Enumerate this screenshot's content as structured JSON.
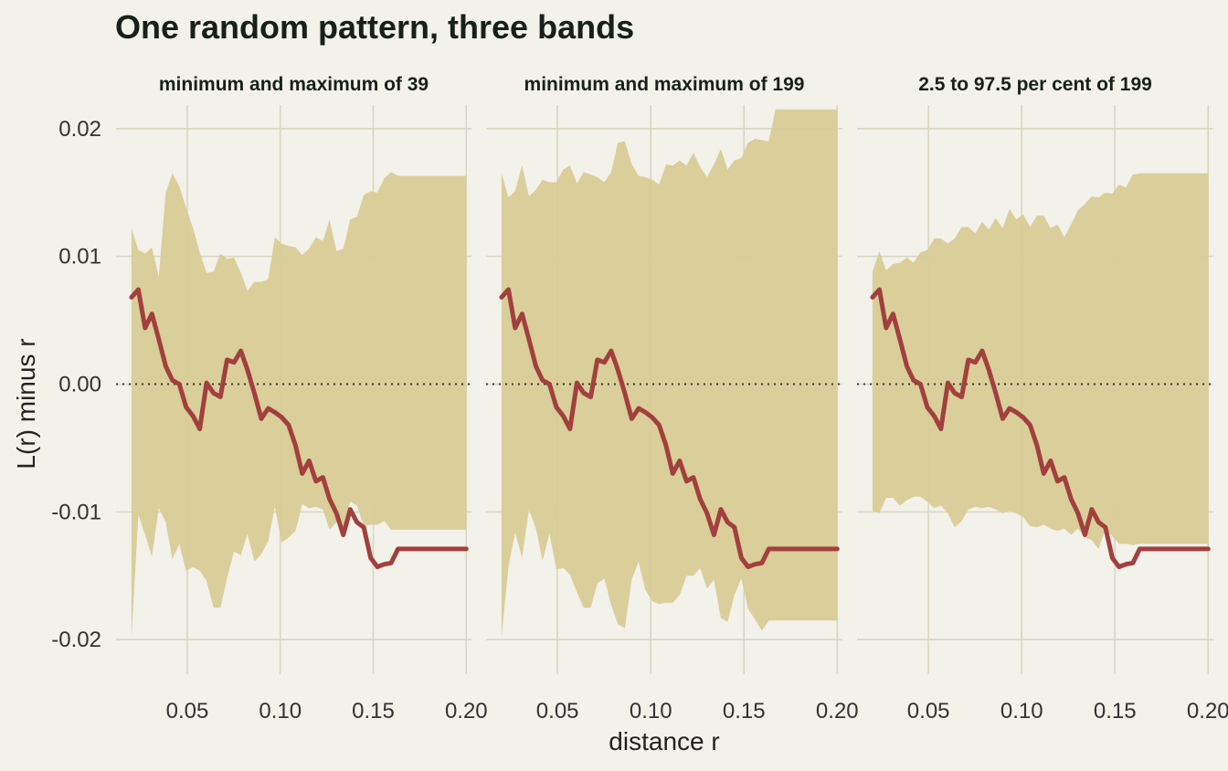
{
  "chart_data": {
    "type": "area",
    "title": "One random pattern, three bands",
    "xlabel": "distance r",
    "ylabel": "L(r) minus r",
    "xlim": [
      0.02,
      0.2
    ],
    "ylim": [
      -0.0215,
      0.0215
    ],
    "x_ticks": [
      "0.05",
      "0.10",
      "0.15",
      "0.20"
    ],
    "x_tick_values": [
      0.05,
      0.1,
      0.15,
      0.2
    ],
    "y_ticks": [
      "-0.02",
      "-0.01",
      "0.00",
      "0.01",
      "0.02"
    ],
    "y_tick_values": [
      -0.02,
      -0.01,
      0.0,
      0.01,
      0.02
    ],
    "grid": true,
    "reference_line": 0,
    "colors": {
      "band": "#d8cb96",
      "observed": "#a1403e",
      "background": "#f2f1ea",
      "grid": "#d9d6c1"
    },
    "x": [
      0.02,
      0.0237,
      0.0273,
      0.031,
      0.0347,
      0.0384,
      0.042,
      0.0457,
      0.0494,
      0.0531,
      0.0567,
      0.0604,
      0.0641,
      0.0678,
      0.0714,
      0.0751,
      0.0788,
      0.0824,
      0.0861,
      0.0898,
      0.0935,
      0.0971,
      0.1008,
      0.1045,
      0.1082,
      0.1118,
      0.1155,
      0.1192,
      0.1229,
      0.1265,
      0.1302,
      0.1339,
      0.1376,
      0.1412,
      0.1449,
      0.1486,
      0.1522,
      0.1559,
      0.1596,
      0.1633,
      0.1669,
      0.1706,
      0.1743,
      0.178,
      0.1816,
      0.1853,
      0.189,
      0.1927,
      0.1963,
      0.2
    ],
    "observed": [
      0.0068,
      0.0074,
      0.0044,
      0.0055,
      0.0035,
      0.0014,
      0.0003,
      0.0,
      -0.0018,
      -0.0025,
      -0.0035,
      0.0001,
      -0.0007,
      -0.001,
      0.0019,
      0.0017,
      0.0026,
      0.0011,
      -0.0007,
      -0.0027,
      -0.0019,
      -0.0022,
      -0.0026,
      -0.0032,
      -0.0048,
      -0.007,
      -0.006,
      -0.0076,
      -0.0073,
      -0.009,
      -0.0101,
      -0.0118,
      -0.0098,
      -0.0108,
      -0.0112,
      -0.0136,
      -0.0143,
      -0.0141,
      -0.014,
      -0.0129,
      -0.0129,
      -0.0129,
      -0.0129,
      -0.0129,
      -0.0129,
      -0.0129,
      -0.0129,
      -0.0129,
      -0.0129,
      -0.0129
    ],
    "panels": [
      {
        "name": "minimum and maximum of 39",
        "upper": [
          0.0122,
          0.0105,
          0.0102,
          0.0107,
          0.0084,
          0.015,
          0.0165,
          0.0155,
          0.0138,
          0.0122,
          0.0103,
          0.0087,
          0.0088,
          0.0102,
          0.0098,
          0.0099,
          0.0087,
          0.0073,
          0.008,
          0.008,
          0.0082,
          0.0115,
          0.011,
          0.0108,
          0.0107,
          0.0101,
          0.0106,
          0.0115,
          0.0112,
          0.0129,
          0.0104,
          0.0106,
          0.0129,
          0.0131,
          0.0148,
          0.0151,
          0.015,
          0.0161,
          0.0166,
          0.0163,
          0.0163,
          0.0163,
          0.0163,
          0.0163,
          0.0163,
          0.0163,
          0.0163,
          0.0163,
          0.0163,
          0.0163
        ],
        "lower": [
          -0.0198,
          -0.0102,
          -0.0118,
          -0.0135,
          -0.0097,
          -0.0108,
          -0.0137,
          -0.0125,
          -0.0146,
          -0.0143,
          -0.0146,
          -0.0154,
          -0.0175,
          -0.0175,
          -0.0152,
          -0.0131,
          -0.0134,
          -0.0117,
          -0.0139,
          -0.0133,
          -0.0123,
          -0.0096,
          -0.0124,
          -0.012,
          -0.0115,
          -0.0094,
          -0.0097,
          -0.0096,
          -0.0098,
          -0.0114,
          -0.0108,
          -0.0112,
          -0.0092,
          -0.0095,
          -0.0111,
          -0.011,
          -0.011,
          -0.0107,
          -0.0114,
          -0.0114,
          -0.0114,
          -0.0114,
          -0.0114,
          -0.0114,
          -0.0114,
          -0.0114,
          -0.0114,
          -0.0114,
          -0.0114,
          -0.0114
        ]
      },
      {
        "name": "minimum and maximum of 199",
        "upper": [
          0.0165,
          0.0146,
          0.0151,
          0.0171,
          0.0147,
          0.0152,
          0.016,
          0.0158,
          0.0158,
          0.0168,
          0.0171,
          0.0157,
          0.0166,
          0.0164,
          0.0162,
          0.0158,
          0.0166,
          0.0189,
          0.019,
          0.0172,
          0.0163,
          0.0162,
          0.016,
          0.0156,
          0.0172,
          0.0171,
          0.0175,
          0.0171,
          0.0181,
          0.017,
          0.0162,
          0.0172,
          0.0184,
          0.0168,
          0.0175,
          0.0177,
          0.0189,
          0.0192,
          0.0191,
          0.019,
          0.0215,
          0.0215,
          0.0215,
          0.0215,
          0.0215,
          0.0215,
          0.0215,
          0.0215,
          0.0215,
          0.0215
        ],
        "lower": [
          -0.0198,
          -0.0143,
          -0.0116,
          -0.0136,
          -0.0098,
          -0.0113,
          -0.0138,
          -0.0117,
          -0.0145,
          -0.0144,
          -0.0149,
          -0.0163,
          -0.0175,
          -0.0175,
          -0.0156,
          -0.0152,
          -0.0173,
          -0.0188,
          -0.0191,
          -0.0153,
          -0.0139,
          -0.0161,
          -0.017,
          -0.0172,
          -0.0171,
          -0.0171,
          -0.0165,
          -0.015,
          -0.015,
          -0.0144,
          -0.016,
          -0.0153,
          -0.0183,
          -0.0186,
          -0.0165,
          -0.0152,
          -0.0176,
          -0.0184,
          -0.0193,
          -0.0185,
          -0.0185,
          -0.0185,
          -0.0185,
          -0.0185,
          -0.0185,
          -0.0185,
          -0.0185,
          -0.0185,
          -0.0185,
          -0.0185
        ]
      },
      {
        "name": "2.5 to 97.5 per cent of 199",
        "upper": [
          0.0088,
          0.0104,
          0.0089,
          0.0094,
          0.0095,
          0.0099,
          0.0095,
          0.0103,
          0.0105,
          0.0114,
          0.0114,
          0.011,
          0.0114,
          0.0123,
          0.0123,
          0.0118,
          0.0127,
          0.0121,
          0.013,
          0.0122,
          0.0137,
          0.0129,
          0.0133,
          0.0123,
          0.0132,
          0.0132,
          0.0122,
          0.0125,
          0.0115,
          0.0125,
          0.0136,
          0.0141,
          0.0147,
          0.0146,
          0.015,
          0.0149,
          0.0156,
          0.0154,
          0.0164,
          0.0165,
          0.0165,
          0.0165,
          0.0165,
          0.0165,
          0.0165,
          0.0165,
          0.0165,
          0.0165,
          0.0165,
          0.0165
        ],
        "lower": [
          -0.0099,
          -0.0101,
          -0.0089,
          -0.0089,
          -0.0095,
          -0.0091,
          -0.0088,
          -0.0088,
          -0.0092,
          -0.0097,
          -0.0095,
          -0.0101,
          -0.0112,
          -0.0107,
          -0.0098,
          -0.0096,
          -0.0097,
          -0.0096,
          -0.0098,
          -0.0101,
          -0.0099,
          -0.0101,
          -0.0104,
          -0.0111,
          -0.0112,
          -0.011,
          -0.0113,
          -0.0115,
          -0.0113,
          -0.0118,
          -0.0113,
          -0.012,
          -0.0122,
          -0.0129,
          -0.0114,
          -0.0119,
          -0.0125,
          -0.0125,
          -0.0126,
          -0.0125,
          -0.0125,
          -0.0125,
          -0.0125,
          -0.0125,
          -0.0125,
          -0.0125,
          -0.0125,
          -0.0125,
          -0.0125,
          -0.0125
        ]
      }
    ]
  }
}
